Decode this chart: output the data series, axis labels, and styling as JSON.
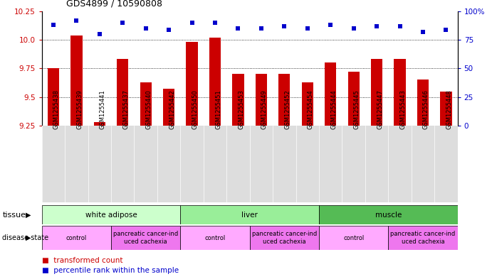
{
  "title": "GDS4899 / 10590808",
  "samples": [
    "GSM1255438",
    "GSM1255439",
    "GSM1255441",
    "GSM1255437",
    "GSM1255440",
    "GSM1255442",
    "GSM1255450",
    "GSM1255451",
    "GSM1255453",
    "GSM1255449",
    "GSM1255452",
    "GSM1255454",
    "GSM1255444",
    "GSM1255445",
    "GSM1255447",
    "GSM1255443",
    "GSM1255446",
    "GSM1255448"
  ],
  "bar_values": [
    9.75,
    10.04,
    9.28,
    9.83,
    9.63,
    9.57,
    9.98,
    10.02,
    9.7,
    9.7,
    9.7,
    9.63,
    9.8,
    9.72,
    9.83,
    9.83,
    9.65,
    9.55
  ],
  "dot_values": [
    88,
    92,
    80,
    90,
    85,
    84,
    90,
    90,
    85,
    85,
    87,
    85,
    88,
    85,
    87,
    87,
    82,
    84
  ],
  "bar_color": "#cc0000",
  "dot_color": "#0000cc",
  "ylim_left": [
    9.25,
    10.25
  ],
  "ylim_right": [
    0,
    100
  ],
  "yticks_left": [
    9.25,
    9.5,
    9.75,
    10.0,
    10.25
  ],
  "yticks_right": [
    0,
    25,
    50,
    75,
    100
  ],
  "ytick_labels_right": [
    "0",
    "25",
    "50",
    "75",
    "100%"
  ],
  "grid_values": [
    9.5,
    9.75,
    10.0
  ],
  "tissue_groups": [
    {
      "label": "white adipose",
      "start": 0,
      "end": 6,
      "color": "#ccffcc"
    },
    {
      "label": "liver",
      "start": 6,
      "end": 12,
      "color": "#99ee99"
    },
    {
      "label": "muscle",
      "start": 12,
      "end": 18,
      "color": "#55bb55"
    }
  ],
  "disease_groups": [
    {
      "label": "control",
      "start": 0,
      "end": 3,
      "color": "#ffaaff"
    },
    {
      "label": "pancreatic cancer-ind\nuced cachexia",
      "start": 3,
      "end": 6,
      "color": "#ee77ee"
    },
    {
      "label": "control",
      "start": 6,
      "end": 9,
      "color": "#ffaaff"
    },
    {
      "label": "pancreatic cancer-ind\nuced cachexia",
      "start": 9,
      "end": 12,
      "color": "#ee77ee"
    },
    {
      "label": "control",
      "start": 12,
      "end": 15,
      "color": "#ffaaff"
    },
    {
      "label": "pancreatic cancer-ind\nuced cachexia",
      "start": 15,
      "end": 18,
      "color": "#ee77ee"
    }
  ],
  "legend_items": [
    {
      "label": "transformed count",
      "color": "#cc0000"
    },
    {
      "label": "percentile rank within the sample",
      "color": "#0000cc"
    }
  ],
  "background_color": "#ffffff",
  "fig_width": 6.91,
  "fig_height": 3.93,
  "fig_dpi": 100
}
